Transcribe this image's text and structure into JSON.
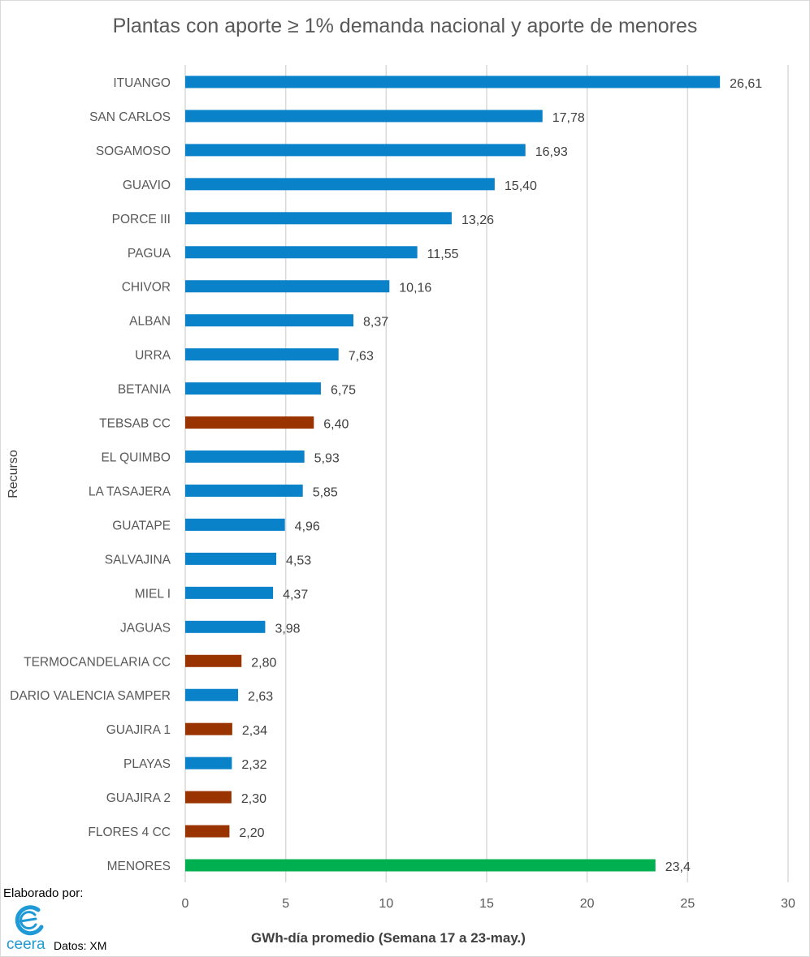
{
  "chart_data": {
    "type": "bar",
    "orientation": "horizontal",
    "title": "Plantas con aporte ≥ 1% demanda nacional y aporte de menores",
    "xlabel": "GWh-día promedio (Semana 17 a 23-may.)",
    "ylabel": "Recurso",
    "xlim": [
      0,
      30
    ],
    "xticks": [
      0,
      5,
      10,
      15,
      20,
      25,
      30
    ],
    "grid": "vertical",
    "colors": {
      "hydro": "#0a82c9",
      "thermal": "#993300",
      "minor": "#00b050"
    },
    "bars": [
      {
        "category": "ITUANGO",
        "value": 26.61,
        "label": "26,61",
        "group": "hydro"
      },
      {
        "category": "SAN CARLOS",
        "value": 17.78,
        "label": "17,78",
        "group": "hydro"
      },
      {
        "category": "SOGAMOSO",
        "value": 16.93,
        "label": "16,93",
        "group": "hydro"
      },
      {
        "category": "GUAVIO",
        "value": 15.4,
        "label": "15,40",
        "group": "hydro"
      },
      {
        "category": "PORCE III",
        "value": 13.26,
        "label": "13,26",
        "group": "hydro"
      },
      {
        "category": "PAGUA",
        "value": 11.55,
        "label": "11,55",
        "group": "hydro"
      },
      {
        "category": "CHIVOR",
        "value": 10.16,
        "label": "10,16",
        "group": "hydro"
      },
      {
        "category": "ALBAN",
        "value": 8.37,
        "label": "8,37",
        "group": "hydro"
      },
      {
        "category": "URRA",
        "value": 7.63,
        "label": "7,63",
        "group": "hydro"
      },
      {
        "category": "BETANIA",
        "value": 6.75,
        "label": "6,75",
        "group": "hydro"
      },
      {
        "category": "TEBSAB CC",
        "value": 6.4,
        "label": "6,40",
        "group": "thermal"
      },
      {
        "category": "EL QUIMBO",
        "value": 5.93,
        "label": "5,93",
        "group": "hydro"
      },
      {
        "category": "LA TASAJERA",
        "value": 5.85,
        "label": "5,85",
        "group": "hydro"
      },
      {
        "category": "GUATAPE",
        "value": 4.96,
        "label": "4,96",
        "group": "hydro"
      },
      {
        "category": "SALVAJINA",
        "value": 4.53,
        "label": "4,53",
        "group": "hydro"
      },
      {
        "category": "MIEL I",
        "value": 4.37,
        "label": "4,37",
        "group": "hydro"
      },
      {
        "category": "JAGUAS",
        "value": 3.98,
        "label": "3,98",
        "group": "hydro"
      },
      {
        "category": "TERMOCANDELARIA CC",
        "value": 2.8,
        "label": "2,80",
        "group": "thermal"
      },
      {
        "category": "DARIO VALENCIA SAMPER",
        "value": 2.63,
        "label": "2,63",
        "group": "hydro"
      },
      {
        "category": "GUAJIRA 1",
        "value": 2.34,
        "label": "2,34",
        "group": "thermal"
      },
      {
        "category": "PLAYAS",
        "value": 2.32,
        "label": "2,32",
        "group": "hydro"
      },
      {
        "category": "GUAJIRA 2",
        "value": 2.3,
        "label": "2,30",
        "group": "thermal"
      },
      {
        "category": "FLORES 4 CC",
        "value": 2.2,
        "label": "2,20",
        "group": "thermal"
      },
      {
        "category": "MENORES",
        "value": 23.4,
        "label": "23,4",
        "group": "minor"
      }
    ]
  },
  "footer": {
    "credit": "Elaborado por:",
    "logo_text": "ceera",
    "source": "Datos: XM"
  }
}
